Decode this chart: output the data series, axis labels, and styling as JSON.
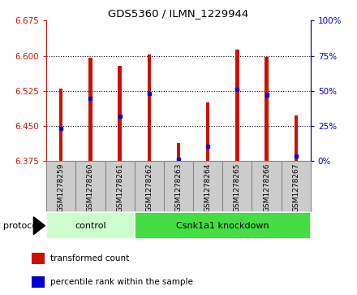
{
  "title": "GDS5360 / ILMN_1229944",
  "samples": [
    "GSM1278259",
    "GSM1278260",
    "GSM1278261",
    "GSM1278262",
    "GSM1278263",
    "GSM1278264",
    "GSM1278265",
    "GSM1278266",
    "GSM1278267"
  ],
  "bar_tops": [
    6.53,
    6.595,
    6.578,
    6.603,
    6.413,
    6.5,
    6.613,
    6.598,
    6.473
  ],
  "bar_base": 6.375,
  "blue_positions": [
    6.445,
    6.508,
    6.47,
    6.519,
    6.379,
    6.406,
    6.528,
    6.515,
    6.385
  ],
  "ylim_left": [
    6.375,
    6.675
  ],
  "yticks_left": [
    6.375,
    6.45,
    6.525,
    6.6,
    6.675
  ],
  "ylim_right": [
    0,
    100
  ],
  "yticks_right": [
    0,
    25,
    50,
    75,
    100
  ],
  "bar_color": "#cc1100",
  "blue_color": "#0000cc",
  "groups": [
    {
      "label": "control",
      "start": 0,
      "end": 3,
      "color": "#ccffcc"
    },
    {
      "label": "Csnk1a1 knockdown",
      "start": 3,
      "end": 9,
      "color": "#44dd44"
    }
  ],
  "protocol_label": "protocol",
  "legend_items": [
    {
      "label": "transformed count",
      "color": "#cc1100"
    },
    {
      "label": "percentile rank within the sample",
      "color": "#0000cc"
    }
  ],
  "bar_width": 0.12,
  "tick_color_left": "#cc1100",
  "tick_color_right": "#0000cc",
  "sample_box_color": "#cccccc",
  "sample_box_edge": "#888888"
}
